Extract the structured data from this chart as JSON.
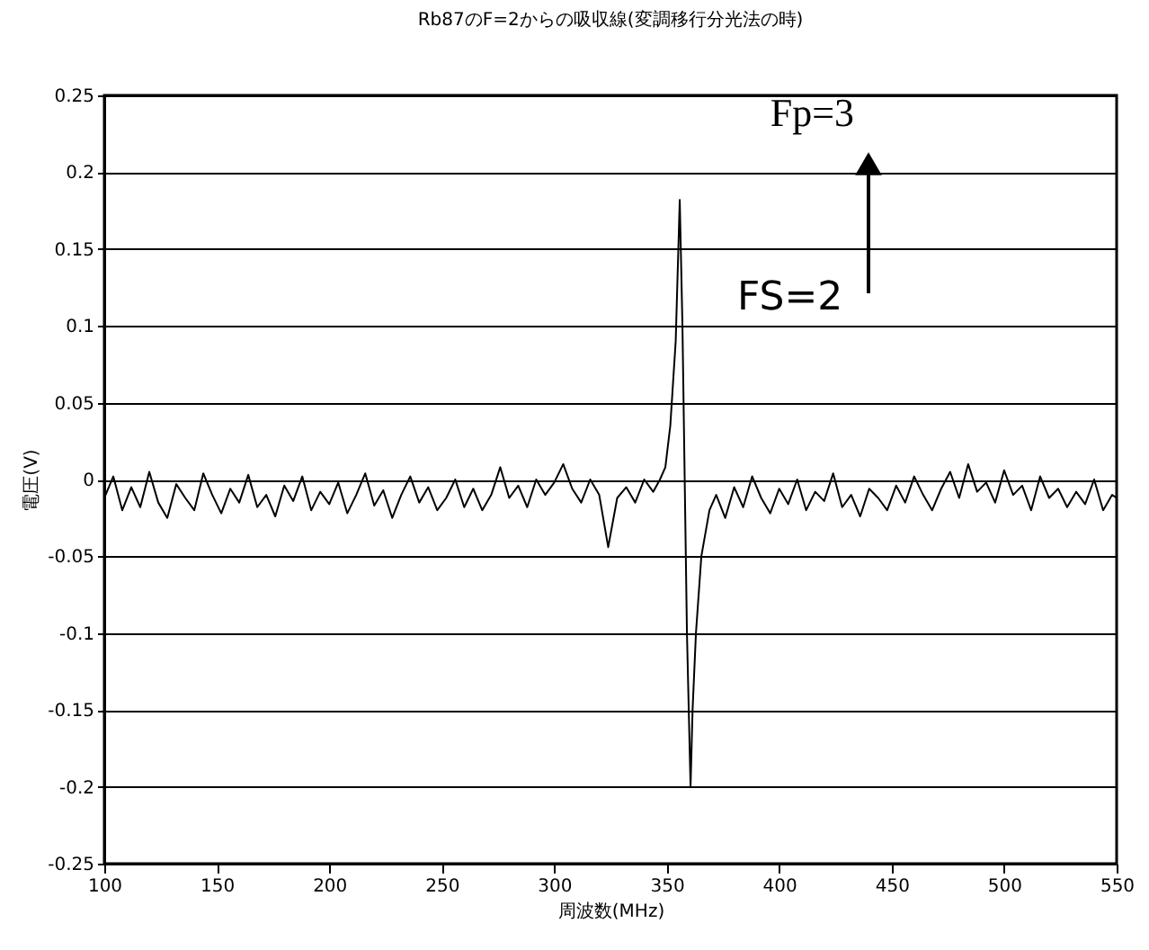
{
  "chart_data": {
    "type": "line",
    "title": "Rb87のF=2からの吸収線(変調移行分光法の時)",
    "xlabel": "周波数(MHz)",
    "ylabel": "電圧(V)",
    "x": [
      100,
      104,
      108,
      112,
      116,
      120,
      124,
      128,
      132,
      136,
      140,
      144,
      148,
      152,
      156,
      160,
      164,
      168,
      172,
      176,
      180,
      184,
      188,
      192,
      196,
      200,
      204,
      208,
      212,
      216,
      220,
      224,
      228,
      232,
      236,
      240,
      244,
      248,
      252,
      256,
      260,
      264,
      268,
      272,
      276,
      280,
      284,
      288,
      292,
      296,
      300,
      304,
      308,
      312,
      316,
      320,
      324,
      328,
      332,
      336,
      340,
      344,
      347,
      349.4,
      351.6,
      354,
      355.8,
      357,
      358,
      359,
      360.6,
      361.5,
      363,
      365.4,
      369,
      372,
      376,
      380,
      384,
      388,
      392,
      396,
      400,
      404,
      408,
      412,
      416,
      420,
      424,
      428,
      432,
      436,
      440,
      444,
      448,
      452,
      456,
      460,
      464,
      468,
      472,
      476,
      480,
      484,
      488,
      492,
      496,
      500,
      504,
      508,
      512,
      516,
      520,
      524,
      528,
      532,
      536,
      540,
      544,
      548,
      550
    ],
    "series": [
      {
        "color": "#000000",
        "values": [
          -0.012,
          0.002,
          -0.02,
          -0.005,
          -0.018,
          0.005,
          -0.015,
          -0.025,
          -0.003,
          -0.012,
          -0.02,
          0.004,
          -0.01,
          -0.022,
          -0.006,
          -0.015,
          0.003,
          -0.018,
          -0.01,
          -0.024,
          -0.004,
          -0.014,
          0.002,
          -0.02,
          -0.008,
          -0.016,
          -0.002,
          -0.022,
          -0.01,
          0.004,
          -0.017,
          -0.007,
          -0.025,
          -0.01,
          0.002,
          -0.015,
          -0.005,
          -0.02,
          -0.012,
          0.0,
          -0.018,
          -0.006,
          -0.02,
          -0.01,
          0.008,
          -0.012,
          -0.004,
          -0.018,
          0.0,
          -0.01,
          -0.002,
          0.01,
          -0.006,
          -0.015,
          0.0,
          -0.01,
          -0.044,
          -0.012,
          -0.005,
          -0.015,
          0.0,
          -0.008,
          0.0,
          0.008,
          0.035,
          0.09,
          0.182,
          0.1,
          0.0,
          -0.1,
          -0.2,
          -0.15,
          -0.1,
          -0.05,
          -0.02,
          -0.01,
          -0.025,
          -0.005,
          -0.018,
          0.002,
          -0.012,
          -0.022,
          -0.006,
          -0.016,
          0.0,
          -0.02,
          -0.008,
          -0.014,
          0.004,
          -0.018,
          -0.01,
          -0.024,
          -0.006,
          -0.012,
          -0.02,
          -0.004,
          -0.015,
          0.002,
          -0.01,
          -0.02,
          -0.006,
          0.005,
          -0.012,
          0.01,
          -0.008,
          -0.002,
          -0.015,
          0.006,
          -0.01,
          -0.004,
          -0.02,
          0.002,
          -0.012,
          -0.006,
          -0.018,
          -0.008,
          -0.016,
          0.0,
          -0.02,
          -0.01,
          -0.012
        ]
      }
    ],
    "xlim": [
      100,
      550
    ],
    "xticks": [
      100,
      150,
      200,
      250,
      300,
      350,
      400,
      450,
      500,
      550
    ],
    "ylim": [
      -0.25,
      0.25
    ],
    "yticks": [
      -0.25,
      -0.2,
      -0.15,
      -0.1,
      -0.05,
      0,
      0.05,
      0.1,
      0.15,
      0.2,
      0.25
    ],
    "grid": "y",
    "marker": "none",
    "line_style": "solid",
    "annotations": [
      "Fp=3",
      "FS=2"
    ]
  }
}
